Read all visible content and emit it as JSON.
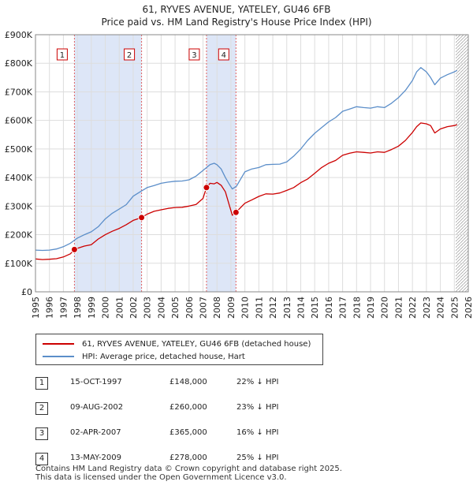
{
  "header": {
    "title_line1": "61, RYVES AVENUE, YATELEY, GU46 6FB",
    "title_line2": "Price paid vs. HM Land Registry's House Price Index (HPI)"
  },
  "colors": {
    "property_line": "#cc0000",
    "hpi_line": "#5b8ec9",
    "shade": "#dde6f7",
    "grid": "#dddddd"
  },
  "chart_data": {
    "type": "line",
    "xlim": [
      1995,
      2026
    ],
    "ylim": [
      0,
      900000
    ],
    "x_ticks": [
      1995,
      1996,
      1997,
      1998,
      1999,
      2000,
      2001,
      2002,
      2003,
      2004,
      2005,
      2006,
      2007,
      2008,
      2009,
      2010,
      2011,
      2012,
      2013,
      2014,
      2015,
      2016,
      2017,
      2018,
      2019,
      2020,
      2021,
      2022,
      2023,
      2024,
      2025,
      2026
    ],
    "y_ticks": [
      {
        "value": 0,
        "label": "£0"
      },
      {
        "value": 100000,
        "label": "£100K"
      },
      {
        "value": 200000,
        "label": "£200K"
      },
      {
        "value": 300000,
        "label": "£300K"
      },
      {
        "value": 400000,
        "label": "£400K"
      },
      {
        "value": 500000,
        "label": "£500K"
      },
      {
        "value": 600000,
        "label": "£600K"
      },
      {
        "value": 700000,
        "label": "£700K"
      },
      {
        "value": 800000,
        "label": "£800K"
      },
      {
        "value": 900000,
        "label": "£900K"
      }
    ],
    "shaded_periods": [
      [
        1997.79,
        2002.6
      ],
      [
        2007.25,
        2009.36
      ]
    ],
    "future_hatch_from": 2025.1,
    "series": [
      {
        "name": "61, RYVES AVENUE, YATELEY, GU46 6FB (detached house)",
        "color": "#cc0000",
        "x": [
          1995,
          1995.5,
          1996,
          1996.5,
          1997,
          1997.5,
          1997.79,
          1998,
          1998.5,
          1999,
          1999.5,
          2000,
          2000.5,
          2001,
          2001.5,
          2002,
          2002.3,
          2002.6,
          2003,
          2003.5,
          2004,
          2004.5,
          2005,
          2005.5,
          2006,
          2006.5,
          2007,
          2007.25,
          2007.5,
          2007.8,
          2008,
          2008.3,
          2008.6,
          2008.9,
          2009.1,
          2009.36,
          2009.7,
          2010,
          2010.5,
          2011,
          2011.5,
          2012,
          2012.5,
          2013,
          2013.5,
          2014,
          2014.5,
          2015,
          2015.5,
          2016,
          2016.5,
          2017,
          2017.5,
          2018,
          2018.5,
          2019,
          2019.5,
          2020,
          2020.5,
          2021,
          2021.5,
          2022,
          2022.3,
          2022.6,
          2023,
          2023.3,
          2023.6,
          2024,
          2024.5,
          2025,
          2025.2
        ],
        "values": [
          115000,
          113000,
          114000,
          116000,
          122000,
          133000,
          148000,
          152000,
          160000,
          165000,
          185000,
          200000,
          212000,
          222000,
          235000,
          250000,
          255000,
          260000,
          272000,
          282000,
          287000,
          292000,
          295000,
          296000,
          300000,
          306000,
          327000,
          365000,
          380000,
          378000,
          383000,
          373000,
          350000,
          300000,
          268000,
          278000,
          295000,
          310000,
          322000,
          334000,
          343000,
          342000,
          346000,
          355000,
          365000,
          382000,
          395000,
          415000,
          435000,
          450000,
          460000,
          478000,
          485000,
          490000,
          488000,
          486000,
          490000,
          488000,
          498000,
          510000,
          530000,
          558000,
          578000,
          591000,
          588000,
          582000,
          556000,
          570000,
          578000,
          582000,
          585000
        ]
      },
      {
        "name": "HPI: Average price, detached house, Hart",
        "color": "#5b8ec9",
        "x": [
          1995,
          1995.5,
          1996,
          1996.5,
          1997,
          1997.5,
          1998,
          1998.5,
          1999,
          1999.5,
          2000,
          2000.5,
          2001,
          2001.5,
          2002,
          2002.5,
          2003,
          2003.5,
          2004,
          2004.5,
          2005,
          2005.5,
          2006,
          2006.5,
          2007,
          2007.5,
          2007.8,
          2008,
          2008.3,
          2008.6,
          2008.9,
          2009.1,
          2009.4,
          2009.7,
          2010,
          2010.5,
          2011,
          2011.5,
          2012,
          2012.5,
          2013,
          2013.5,
          2014,
          2014.5,
          2015,
          2015.5,
          2016,
          2016.5,
          2017,
          2017.5,
          2018,
          2018.5,
          2019,
          2019.5,
          2020,
          2020.5,
          2021,
          2021.5,
          2022,
          2022.3,
          2022.6,
          2023,
          2023.3,
          2023.6,
          2024,
          2024.5,
          2025,
          2025.2
        ],
        "values": [
          146000,
          145000,
          146000,
          150000,
          158000,
          170000,
          188000,
          200000,
          210000,
          228000,
          255000,
          275000,
          290000,
          305000,
          335000,
          350000,
          365000,
          372000,
          380000,
          384000,
          387000,
          388000,
          392000,
          405000,
          425000,
          445000,
          450000,
          445000,
          430000,
          400000,
          375000,
          360000,
          370000,
          395000,
          420000,
          430000,
          435000,
          445000,
          446000,
          447000,
          455000,
          475000,
          500000,
          530000,
          555000,
          575000,
          595000,
          610000,
          632000,
          640000,
          648000,
          645000,
          643000,
          648000,
          645000,
          660000,
          680000,
          705000,
          740000,
          770000,
          785000,
          770000,
          750000,
          725000,
          748000,
          760000,
          770000,
          775000
        ]
      }
    ],
    "sale_markers": [
      {
        "id": "1",
        "x": 1997.79,
        "value": 148000
      },
      {
        "id": "2",
        "x": 2002.6,
        "value": 260000
      },
      {
        "id": "3",
        "x": 2007.25,
        "value": 365000
      },
      {
        "id": "4",
        "x": 2009.36,
        "value": 278000
      }
    ]
  },
  "legend": {
    "property_label": "61, RYVES AVENUE, YATELEY, GU46 6FB (detached house)",
    "hpi_label": "HPI: Average price, detached house, Hart"
  },
  "sales": [
    {
      "num": "1",
      "date": "15-OCT-1997",
      "price": "£148,000",
      "hpi": "22% ↓ HPI"
    },
    {
      "num": "2",
      "date": "09-AUG-2002",
      "price": "£260,000",
      "hpi": "23% ↓ HPI"
    },
    {
      "num": "3",
      "date": "02-APR-2007",
      "price": "£365,000",
      "hpi": "16% ↓ HPI"
    },
    {
      "num": "4",
      "date": "13-MAY-2009",
      "price": "£278,000",
      "hpi": "25% ↓ HPI"
    }
  ],
  "footer": {
    "line1": "Contains HM Land Registry data © Crown copyright and database right 2025.",
    "line2": "This data is licensed under the Open Government Licence v3.0."
  }
}
